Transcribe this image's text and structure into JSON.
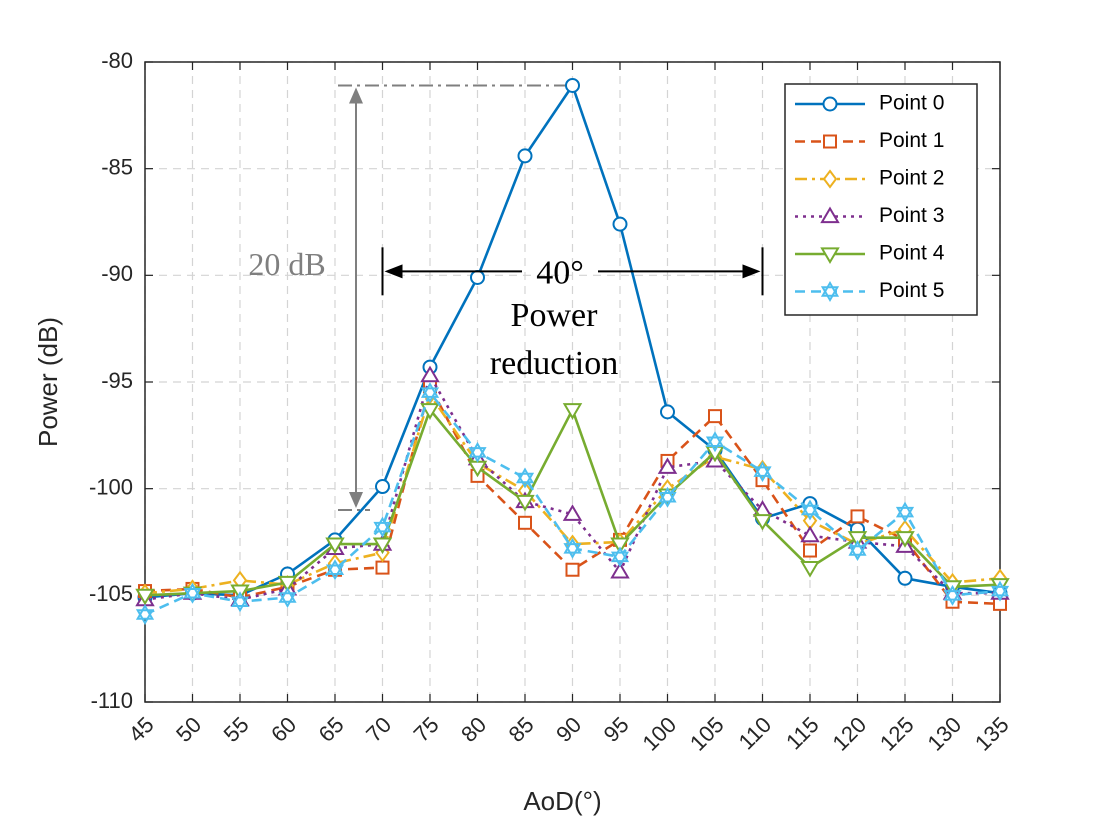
{
  "chart_data": {
    "type": "line",
    "xlabel": "AoD(°)",
    "ylabel": "Power (dB)",
    "x": [
      45,
      50,
      55,
      60,
      65,
      70,
      75,
      80,
      85,
      90,
      95,
      100,
      105,
      110,
      115,
      120,
      125,
      130,
      135
    ],
    "x_tick_labels": [
      "45",
      "50",
      "55",
      "60",
      "65",
      "70",
      "75",
      "80",
      "85",
      "90",
      "95",
      "100",
      "105",
      "110",
      "115",
      "120",
      "125",
      "130",
      "135"
    ],
    "xlim": [
      45,
      135
    ],
    "ylim": [
      -110,
      -80
    ],
    "y_ticks": [
      -80,
      -85,
      -90,
      -95,
      -100,
      -105,
      -110
    ],
    "y_tick_labels": [
      "-80",
      "-85",
      "-90",
      "-95",
      "-100",
      "-105",
      "-110"
    ],
    "grid": true,
    "legend_position": "top-right",
    "series": [
      {
        "name": "Point 0",
        "color": "#0072BD",
        "dash": "solid",
        "marker": "circle",
        "values": [
          -105.1,
          -104.9,
          -105.0,
          -104.0,
          -102.4,
          -99.9,
          -94.3,
          -90.1,
          -84.4,
          -81.1,
          -87.6,
          -96.4,
          -98.2,
          -101.4,
          -100.7,
          -101.9,
          -104.2,
          -104.6,
          -104.9
        ]
      },
      {
        "name": "Point 1",
        "color": "#D95319",
        "dash": "dashed",
        "marker": "square",
        "values": [
          -104.8,
          -104.7,
          -105.1,
          -104.6,
          -103.8,
          -103.7,
          -95.2,
          -99.4,
          -101.6,
          -103.8,
          -102.4,
          -98.7,
          -96.6,
          -99.6,
          -102.9,
          -101.3,
          -102.4,
          -105.3,
          -105.4
        ]
      },
      {
        "name": "Point 2",
        "color": "#EDB120",
        "dash": "dashdot",
        "marker": "diamond",
        "values": [
          -104.9,
          -104.7,
          -104.3,
          -104.5,
          -103.5,
          -103.0,
          -95.6,
          -98.8,
          -100.1,
          -102.6,
          -102.5,
          -100.0,
          -98.5,
          -99.1,
          -101.5,
          -102.6,
          -101.9,
          -104.4,
          -104.2
        ]
      },
      {
        "name": "Point 3",
        "color": "#7E2F8E",
        "dash": "dotted",
        "marker": "triangle-up",
        "values": [
          -105.2,
          -104.9,
          -105.2,
          -104.7,
          -102.8,
          -102.6,
          -94.7,
          -98.6,
          -100.6,
          -101.2,
          -103.9,
          -99.0,
          -98.7,
          -101.0,
          -102.2,
          -102.5,
          -102.7,
          -104.9,
          -104.9
        ]
      },
      {
        "name": "Point 4",
        "color": "#77AC30",
        "dash": "solid",
        "marker": "triangle-down",
        "values": [
          -105.0,
          -104.9,
          -104.8,
          -104.4,
          -102.6,
          -102.6,
          -96.3,
          -99.0,
          -100.6,
          -96.3,
          -102.6,
          -100.3,
          -98.3,
          -101.5,
          -103.7,
          -102.3,
          -102.3,
          -104.6,
          -104.5
        ]
      },
      {
        "name": "Point 5",
        "color": "#4DBEEE",
        "dash": "dashed",
        "marker": "hexagram",
        "values": [
          -105.9,
          -104.9,
          -105.3,
          -105.1,
          -103.8,
          -101.8,
          -95.5,
          -98.3,
          -99.5,
          -102.8,
          -103.2,
          -100.4,
          -97.8,
          -99.2,
          -101.0,
          -102.9,
          -101.1,
          -105.0,
          -104.8
        ]
      }
    ],
    "annotations": {
      "range_dB": "20 dB",
      "angle_span": "40°",
      "power_label": "Power",
      "reduction_label": "reduction",
      "dB_arrow_from": -81.1,
      "dB_arrow_to": -101.0,
      "angle_arrow_from_x": 70,
      "angle_arrow_to_x": 110,
      "angle_arrow_y": -90
    }
  }
}
